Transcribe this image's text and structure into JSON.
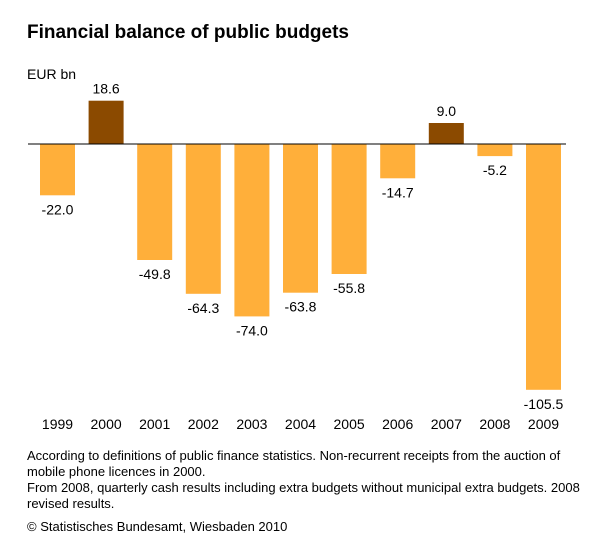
{
  "chart_data": {
    "type": "bar",
    "title": "Financial balance of public budgets",
    "ylabel": "EUR bn",
    "categories": [
      "1999",
      "2000",
      "2001",
      "2002",
      "2003",
      "2004",
      "2005",
      "2006",
      "2007",
      "2008",
      "2009"
    ],
    "values": [
      -22.0,
      18.6,
      -49.8,
      -64.3,
      -74.0,
      -63.8,
      -55.8,
      -14.7,
      9.0,
      -5.2,
      -105.5
    ],
    "value_labels": [
      "-22.0",
      "18.6",
      "-49.8",
      "-64.3",
      "-74.0",
      "-63.8",
      "-55.8",
      "-14.7",
      "9.0",
      "-5.2",
      "-105.5"
    ],
    "ylim": [
      -105.5,
      18.6
    ],
    "grid": false,
    "legend": "none",
    "colors": {
      "positive": "#8B4A00",
      "negative": "#FFAF3A",
      "axis": "#000000"
    }
  },
  "notes": [
    "According to definitions of public finance statistics. Non-recurrent receipts from the auction of mobile phone licences in 2000.",
    "From 2008, quarterly cash results including extra budgets without municipal extra budgets. 2008 revised results."
  ],
  "source": "© Statistisches Bundesamt, Wiesbaden 2010"
}
